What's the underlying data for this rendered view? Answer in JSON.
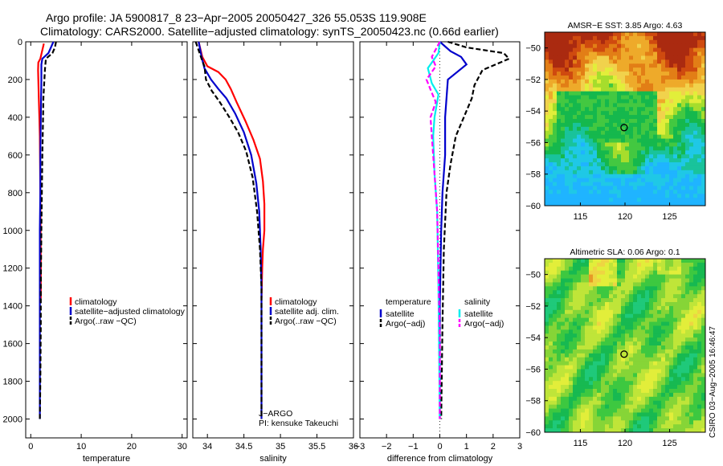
{
  "header": {
    "title_line1": "Argo profile: JA 5900817_8 23−Apr−2005 20050427_326 55.053S 119.908E",
    "title_line2": "Climatology: CARS2000. Satellite−adjusted climatology: synTS_20050423.nc (0.66d earlier)"
  },
  "colors": {
    "climatology": "#ff0000",
    "satellite": "#0000cc",
    "satellite_salinity_diff": "#00eeee",
    "argo_salinity_diff": "#ff00ff",
    "argo": "#000000"
  },
  "side_text": "CSIRO 03−Aug−2005 16:46:47",
  "chart_data": [
    {
      "type": "line",
      "id": "temperature",
      "xlabel": "temperature",
      "ylabel": "",
      "xlim": [
        -1,
        31
      ],
      "ylim": [
        2100,
        0
      ],
      "xticks": [
        0,
        10,
        20,
        30
      ],
      "yticks": [
        0,
        200,
        400,
        600,
        800,
        1000,
        1200,
        1400,
        1600,
        1800,
        2000
      ],
      "legend": [
        "climatology",
        "satellite−adjusted climatology",
        "Argo(..raw −QC)"
      ],
      "series": [
        {
          "name": "climatology",
          "color_key": "climatology",
          "dash": "",
          "x": [
            2.6,
            1.9,
            1.5,
            1.45,
            1.5,
            1.6,
            1.7,
            1.8,
            1.9,
            2.0,
            2.0
          ],
          "y": [
            10,
            90,
            110,
            150,
            200,
            300,
            400,
            500,
            800,
            1200,
            1360
          ]
        },
        {
          "name": "satellite−adjusted climatology",
          "color_key": "satellite",
          "dash": "",
          "x": [
            4.5,
            3.5,
            2.3,
            2.1,
            2.1,
            2.0,
            1.9,
            1.9,
            1.8,
            1.8,
            1.8,
            1.8
          ],
          "y": [
            0,
            60,
            90,
            120,
            200,
            400,
            600,
            800,
            1000,
            1400,
            1800,
            2000
          ]
        },
        {
          "name": "Argo(..raw −QC)",
          "color_key": "argo",
          "dash": "6,3",
          "x": [
            5.0,
            4.8,
            4.3,
            3.0,
            2.8,
            2.5,
            2.4,
            2.3,
            2.2,
            2.1,
            2.0,
            2.0,
            1.9,
            1.8
          ],
          "y": [
            0,
            30,
            60,
            90,
            150,
            300,
            450,
            600,
            800,
            1000,
            1300,
            1500,
            1800,
            2000
          ]
        }
      ]
    },
    {
      "type": "line",
      "id": "salinity",
      "xlabel": "salinity",
      "ylabel": "",
      "xlim": [
        33.8,
        36.0
      ],
      "ylim": [
        2100,
        0
      ],
      "xticks": [
        34,
        34.5,
        35,
        35.5,
        36
      ],
      "xtick_labels": [
        "34",
        "34.5",
        "35",
        "35.5",
        "36"
      ],
      "legend": [
        "climatology",
        "satellite adj. clim.",
        "Argo(..raw −QC)"
      ],
      "annotations": [
        "J−ARGO",
        "PI: kensuke Takeuchi"
      ],
      "series": [
        {
          "name": "climatology",
          "color_key": "climatology",
          "dash": "",
          "x": [
            33.88,
            33.93,
            34.0,
            34.15,
            34.25,
            34.32,
            34.4,
            34.52,
            34.63,
            34.72,
            34.76,
            34.78,
            34.78,
            34.76,
            34.75,
            34.74
          ],
          "y": [
            0,
            80,
            130,
            160,
            200,
            250,
            320,
            420,
            520,
            620,
            740,
            860,
            1000,
            1100,
            1200,
            1360
          ]
        },
        {
          "name": "satellite adj. clim.",
          "color_key": "satellite",
          "dash": "",
          "x": [
            33.88,
            33.92,
            33.96,
            34.05,
            34.15,
            34.26,
            34.38,
            34.5,
            34.6,
            34.67,
            34.71,
            34.73,
            34.74,
            34.74,
            34.74
          ],
          "y": [
            0,
            80,
            140,
            200,
            250,
            300,
            380,
            480,
            600,
            750,
            900,
            1100,
            1300,
            1600,
            2000
          ]
        },
        {
          "name": "Argo(..raw −QC)",
          "color_key": "argo",
          "dash": "6,3",
          "x": [
            33.84,
            33.92,
            33.96,
            33.98,
            34.06,
            34.17,
            34.3,
            34.42,
            34.53,
            34.62,
            34.68,
            34.72,
            34.74,
            34.74,
            34.74
          ],
          "y": [
            0,
            90,
            130,
            200,
            260,
            320,
            400,
            480,
            580,
            720,
            900,
            1100,
            1300,
            1600,
            2000
          ]
        }
      ]
    },
    {
      "type": "line",
      "id": "difference",
      "xlabel": "difference from climatology",
      "ylabel": "",
      "xlim": [
        -3,
        3
      ],
      "ylim": [
        2100,
        0
      ],
      "xticks": [
        -3,
        -2,
        -1,
        0,
        1,
        2,
        3
      ],
      "legend_temperature_title": "temperature",
      "legend_salinity_title": "salinity",
      "legend": [
        "satellite",
        "Argo(−adj)",
        "satellite",
        "Argo(−adj)"
      ],
      "series": [
        {
          "name": "satellite",
          "group": "temperature",
          "color_key": "satellite",
          "dash": "",
          "x": [
            0.0,
            0.4,
            0.8,
            1.0,
            0.3,
            0.2,
            0.2,
            0.1,
            0.05,
            0.0,
            0.0,
            0.0
          ],
          "y": [
            0,
            50,
            80,
            120,
            200,
            400,
            600,
            800,
            1000,
            1400,
            1800,
            2000
          ]
        },
        {
          "name": "Argo(−adj)",
          "group": "temperature",
          "color_key": "argo",
          "dash": "6,3",
          "x": [
            0.3,
            1.0,
            2.4,
            2.6,
            1.6,
            1.3,
            1.2,
            0.9,
            0.6,
            0.4,
            0.25,
            0.15,
            0.1,
            0.05
          ],
          "y": [
            0,
            30,
            60,
            90,
            150,
            230,
            300,
            400,
            500,
            650,
            800,
            1100,
            1500,
            2000
          ]
        },
        {
          "name": "satellite",
          "group": "salinity",
          "color_key": "satellite_salinity_diff",
          "dash": "",
          "x": [
            0.0,
            -0.05,
            -0.45,
            -0.3,
            -0.05,
            -0.2,
            -0.25,
            -0.2,
            -0.1,
            -0.05,
            0.0
          ],
          "y": [
            0,
            60,
            140,
            220,
            280,
            400,
            500,
            700,
            900,
            1300,
            2000
          ]
        },
        {
          "name": "Argo(−adj)",
          "group": "salinity",
          "color_key": "argo_salinity_diff",
          "dash": "6,3",
          "x": [
            0.0,
            -0.3,
            -0.15,
            -0.5,
            -0.3,
            -0.15,
            -0.35,
            -0.3,
            -0.2,
            -0.1,
            -0.05,
            0.0,
            0.0
          ],
          "y": [
            0,
            80,
            130,
            200,
            270,
            320,
            400,
            500,
            700,
            900,
            1200,
            1600,
            2000
          ]
        }
      ]
    },
    {
      "type": "heatmap",
      "id": "sst",
      "title": "AMSR−E SST: 3.85 Argo: 4.63",
      "xlim": [
        111,
        129
      ],
      "ylim": [
        -60,
        -49
      ],
      "xticks": [
        115,
        120,
        125
      ],
      "yticks": [
        -50,
        -52,
        -54,
        -56,
        -58,
        -60
      ],
      "marker": {
        "lon": 119.9,
        "lat": -55.05
      },
      "palette": [
        "#1fb4ff",
        "#1fc8e6",
        "#19c39b",
        "#15b84d",
        "#43c841",
        "#a6dd2c",
        "#e2ee3a",
        "#f1d24c",
        "#eeaa2a",
        "#e27e16",
        "#cf4a0f",
        "#aa2a10"
      ]
    },
    {
      "type": "heatmap",
      "id": "sla",
      "title": "Altimetric SLA: 0.06 Argo: 0.1",
      "xlim": [
        111,
        129
      ],
      "ylim": [
        -60,
        -49
      ],
      "xticks": [
        115,
        120,
        125
      ],
      "yticks": [
        -50,
        -52,
        -54,
        -56,
        -58,
        -60
      ],
      "marker": {
        "lon": 119.9,
        "lat": -55.05
      },
      "palette": [
        "#1fc97a",
        "#17b951",
        "#3dc840",
        "#86d537",
        "#bfe539",
        "#e2ee3a",
        "#eed542",
        "#e79a26",
        "#d0611a"
      ]
    }
  ]
}
